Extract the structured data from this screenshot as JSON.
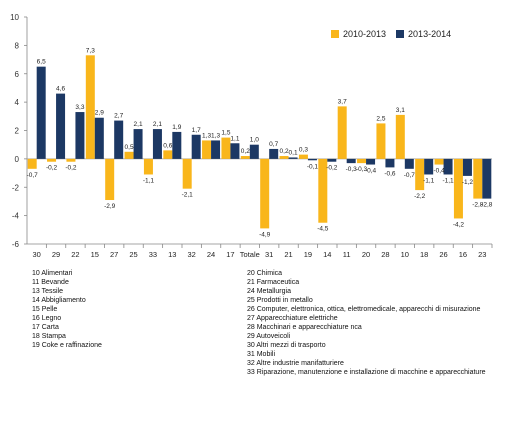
{
  "chart_data": {
    "type": "bar",
    "categories": [
      "30",
      "29",
      "22",
      "15",
      "27",
      "25",
      "33",
      "13",
      "32",
      "24",
      "17",
      "Totale",
      "31",
      "21",
      "19",
      "14",
      "11",
      "20",
      "28",
      "10",
      "18",
      "26",
      "16",
      "23"
    ],
    "series": [
      {
        "name": "2010-2013",
        "color": "#f9b61b",
        "values": [
          -0.7,
          -0.2,
          -0.2,
          7.3,
          -2.9,
          0.5,
          -1.1,
          0.6,
          -2.1,
          1.3,
          1.5,
          0.2,
          -4.9,
          0.2,
          0.3,
          -4.5,
          3.7,
          -0.3,
          2.5,
          3.1,
          -2.2,
          -0.4,
          -4.2,
          -2.8
        ]
      },
      {
        "name": "2013-2014",
        "color": "#1c3864",
        "values": [
          6.5,
          4.6,
          3.3,
          2.9,
          2.7,
          2.1,
          2.1,
          1.9,
          1.7,
          1.3,
          1.1,
          1.0,
          0.7,
          0.1,
          -0.1,
          -0.2,
          -0.3,
          -0.4,
          -0.6,
          -0.7,
          -1.1,
          -1.1,
          -1.2,
          -2.8
        ]
      }
    ],
    "ylim": [
      -6,
      10
    ],
    "yticks": [
      "-6",
      "-4",
      "-2",
      "0",
      "2",
      "4",
      "6",
      "8",
      "10"
    ],
    "labels_s1": [
      "-0,7",
      "-0,2",
      "-0,2",
      "7,3",
      "-2,9",
      "0,5",
      "-1,1",
      "0,6",
      "-2,1",
      "1,3",
      "1,5",
      "0,2",
      "-4,9",
      "0,2",
      "0,3",
      "-4,5",
      "3,7",
      "-0,3",
      "2,5",
      "3,1",
      "-2,2",
      "-0,4",
      "-4,2",
      "-2,8"
    ],
    "labels_s2": [
      "6,5",
      "4,6",
      "3,3",
      "2,9",
      "2,7",
      "2,1",
      "2,1",
      "1,9",
      "1,7",
      "1,3",
      "1,1",
      "1,0",
      "0,7",
      "0,1",
      "-0,1",
      "-0,2",
      "-0,3",
      "-0,4",
      "-0,6",
      "-0,7",
      "-1,1",
      "-1,1",
      "-1,2",
      "-2,8"
    ],
    "grid": false,
    "legend_position": "top-right"
  },
  "legend": [
    {
      "label": "2010-2013",
      "color": "#f9b61b"
    },
    {
      "label": "2013-2014",
      "color": "#1c3864"
    }
  ],
  "notes_left": [
    "10 Alimentari",
    "11 Bevande",
    "13 Tessile",
    "14 Abbigliamento",
    "15 Pelle",
    "16 Legno",
    "17 Carta",
    "18 Stampa",
    "19 Coke e raffinazione"
  ],
  "notes_right": [
    "20 Chimica",
    "21 Farmaceutica",
    "24 Metallurgia",
    "25 Prodotti in metallo",
    "26 Computer, elettronica, ottica, elettromedicale, apparecchi di misurazione",
    "27 Apparecchiature elettriche",
    "28 Macchinari e apparecchiature nca",
    "29 Autoveicoli",
    "30 Altri mezzi di trasporto",
    "31 Mobili",
    "32 Altre industrie manifatturiere",
    "33 Riparazione, manutenzione e installazione di macchine e apparecchiature"
  ]
}
